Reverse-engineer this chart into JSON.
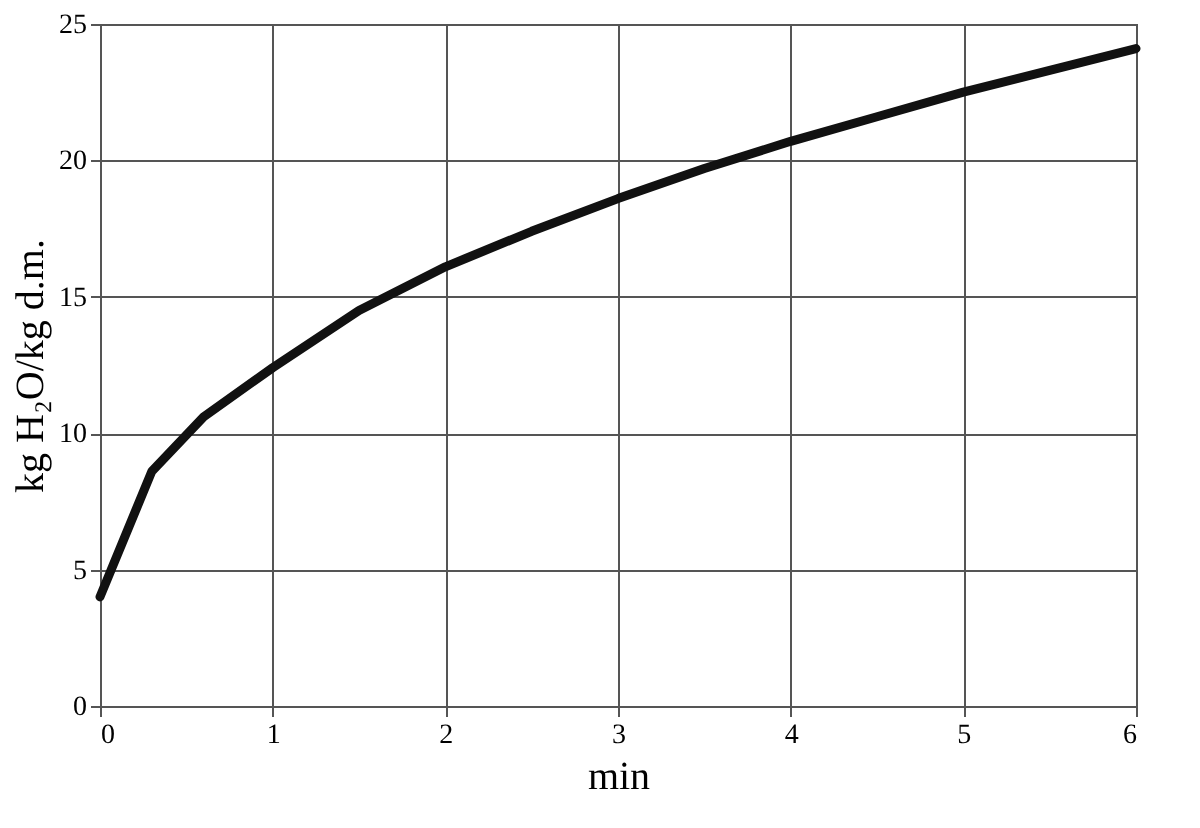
{
  "chart_data": {
    "type": "line",
    "xlabel": "min",
    "ylabel": "kg H₂O/kg d.m.",
    "x": [
      0,
      0.3,
      0.6,
      1,
      1.5,
      2,
      2.5,
      3,
      3.5,
      4,
      4.5,
      5,
      5.5,
      6
    ],
    "series": [
      {
        "color": "#111111",
        "values": [
          4,
          8.6,
          10.6,
          12.4,
          14.5,
          16.1,
          17.4,
          18.6,
          19.7,
          20.7,
          21.6,
          22.5,
          23.3,
          24.1
        ]
      }
    ],
    "xlim": [
      0,
      6
    ],
    "xticks": [
      0,
      1,
      2,
      3,
      4,
      5,
      6
    ],
    "ylim": [
      0,
      25
    ],
    "yticks": [
      0,
      5,
      10,
      15,
      20,
      25
    ],
    "grid": true,
    "marker": "none",
    "line_style": "solid"
  }
}
